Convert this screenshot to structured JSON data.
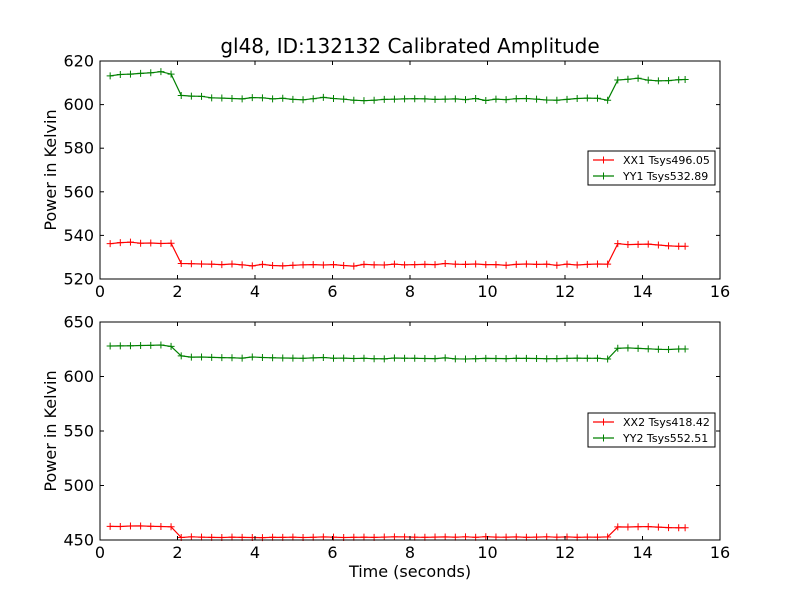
{
  "figure": {
    "title": "gl48, ID:132132 Calibrated Amplitude",
    "xlabel": "Time (seconds)"
  },
  "chart_data": [
    {
      "type": "line",
      "title": "gl48, ID:132132 Calibrated Amplitude",
      "xlabel": "",
      "ylabel": "Power in Kelvin",
      "xlim": [
        0,
        16
      ],
      "ylim": [
        520,
        620
      ],
      "xticks": [
        "0",
        "2",
        "4",
        "6",
        "8",
        "10",
        "12",
        "14",
        "16"
      ],
      "yticks": [
        "520",
        "540",
        "560",
        "580",
        "600",
        "620"
      ],
      "grid": false,
      "legend_position": "center-right",
      "x": [
        0.262,
        0.524,
        0.786,
        1.048,
        1.31,
        1.572,
        1.834,
        2.096,
        2.358,
        2.62,
        2.882,
        3.144,
        3.406,
        3.668,
        3.93,
        4.192,
        4.454,
        4.716,
        4.978,
        5.24,
        5.502,
        5.764,
        6.026,
        6.288,
        6.55,
        6.812,
        7.074,
        7.336,
        7.598,
        7.86,
        8.122,
        8.384,
        8.646,
        8.908,
        9.17,
        9.432,
        9.694,
        9.956,
        10.218,
        10.48,
        10.742,
        11.004,
        11.266,
        11.528,
        11.79,
        12.052,
        12.314,
        12.576,
        12.838,
        13.1,
        13.362,
        13.624,
        13.886,
        14.148,
        14.41,
        14.672,
        14.934,
        15.1
      ],
      "series": [
        {
          "name": "XX1 Tsys496.05",
          "color": "#ff0000",
          "values": [
            536.2,
            536.7,
            536.9,
            536.4,
            536.5,
            536.3,
            536.4,
            527.1,
            527.0,
            526.9,
            526.8,
            526.6,
            526.9,
            526.5,
            526.0,
            526.7,
            526.2,
            526.0,
            526.3,
            526.5,
            526.6,
            526.4,
            526.6,
            526.2,
            525.9,
            526.7,
            526.5,
            526.4,
            526.8,
            526.5,
            526.6,
            526.7,
            526.6,
            527.1,
            526.8,
            526.7,
            526.9,
            526.6,
            526.6,
            526.3,
            526.7,
            526.9,
            526.7,
            526.8,
            526.3,
            526.8,
            526.4,
            526.7,
            526.9,
            526.8,
            536.2,
            535.8,
            535.9,
            536.0,
            535.6,
            535.2,
            535.0,
            535.0
          ]
        },
        {
          "name": "YY1 Tsys532.89",
          "color": "#008000",
          "values": [
            613.2,
            613.8,
            614.0,
            614.3,
            614.6,
            615.1,
            614.0,
            604.2,
            603.9,
            603.8,
            603.1,
            603.0,
            602.8,
            602.6,
            603.2,
            603.1,
            602.6,
            602.9,
            602.4,
            602.2,
            602.7,
            603.3,
            602.8,
            602.5,
            602.0,
            601.8,
            602.0,
            602.4,
            602.5,
            602.6,
            602.7,
            602.6,
            602.4,
            602.5,
            602.6,
            602.3,
            602.8,
            601.9,
            602.5,
            602.3,
            602.7,
            602.8,
            602.5,
            602.1,
            602.0,
            602.4,
            602.8,
            603.0,
            602.9,
            602.0,
            611.3,
            611.6,
            612.1,
            611.2,
            610.9,
            611.0,
            611.4,
            611.5
          ]
        }
      ]
    },
    {
      "type": "line",
      "title": "",
      "xlabel": "Time (seconds)",
      "ylabel": "Power in Kelvin",
      "xlim": [
        0,
        16
      ],
      "ylim": [
        450,
        650
      ],
      "xticks": [
        "0",
        "2",
        "4",
        "6",
        "8",
        "10",
        "12",
        "14",
        "16"
      ],
      "yticks": [
        "450",
        "500",
        "550",
        "600",
        "650"
      ],
      "grid": false,
      "legend_position": "center-right",
      "x": [
        0.262,
        0.524,
        0.786,
        1.048,
        1.31,
        1.572,
        1.834,
        2.096,
        2.358,
        2.62,
        2.882,
        3.144,
        3.406,
        3.668,
        3.93,
        4.192,
        4.454,
        4.716,
        4.978,
        5.24,
        5.502,
        5.764,
        6.026,
        6.288,
        6.55,
        6.812,
        7.074,
        7.336,
        7.598,
        7.86,
        8.122,
        8.384,
        8.646,
        8.908,
        9.17,
        9.432,
        9.694,
        9.956,
        10.218,
        10.48,
        10.742,
        11.004,
        11.266,
        11.528,
        11.79,
        12.052,
        12.314,
        12.576,
        12.838,
        13.1,
        13.362,
        13.624,
        13.886,
        14.148,
        14.41,
        14.672,
        14.934,
        15.1
      ],
      "series": [
        {
          "name": "XX2 Tsys418.42",
          "color": "#ff0000",
          "values": [
            462.5,
            462.4,
            462.8,
            462.9,
            462.6,
            462.4,
            462.1,
            452.3,
            452.9,
            452.6,
            452.4,
            452.3,
            452.6,
            452.4,
            452.3,
            452.2,
            452.5,
            452.4,
            452.6,
            452.3,
            452.5,
            452.8,
            452.6,
            452.3,
            452.5,
            452.6,
            452.4,
            452.7,
            452.9,
            452.8,
            452.6,
            452.5,
            452.7,
            452.8,
            452.6,
            452.9,
            452.5,
            453.0,
            452.7,
            452.6,
            452.8,
            452.5,
            452.7,
            452.9,
            452.6,
            452.8,
            452.5,
            452.7,
            452.6,
            452.8,
            462.0,
            461.9,
            462.2,
            462.3,
            461.8,
            461.4,
            461.2,
            461.2
          ]
        },
        {
          "name": "YY2 Tsys552.51",
          "color": "#008000",
          "values": [
            628.0,
            628.1,
            628.2,
            628.4,
            628.6,
            628.9,
            627.6,
            618.9,
            617.8,
            617.9,
            617.5,
            617.3,
            617.2,
            616.9,
            617.9,
            617.4,
            617.2,
            617.0,
            616.9,
            616.7,
            617.1,
            617.4,
            616.8,
            616.9,
            616.5,
            616.7,
            616.3,
            616.2,
            617.0,
            616.8,
            616.7,
            616.5,
            616.4,
            617.1,
            616.2,
            616.1,
            616.3,
            616.6,
            616.5,
            616.4,
            616.7,
            616.6,
            616.5,
            616.3,
            616.4,
            616.6,
            616.9,
            616.7,
            616.8,
            616.0,
            625.9,
            626.2,
            625.8,
            625.4,
            625.0,
            624.8,
            625.2,
            625.2
          ]
        }
      ]
    }
  ]
}
